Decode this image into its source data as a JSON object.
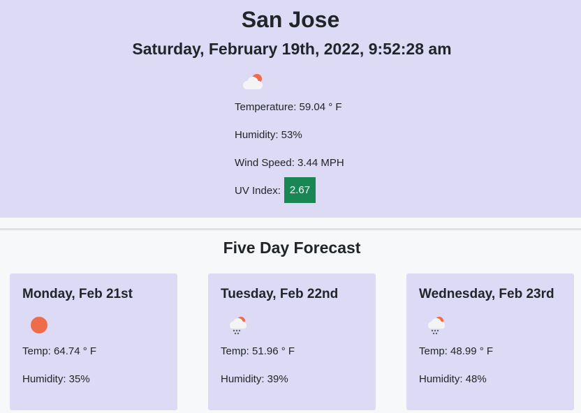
{
  "current": {
    "city": "San Jose",
    "datetime": "Saturday, February 19th, 2022, 9:52:28 am",
    "icon": "partly-cloudy-icon",
    "temperature": "Temperature: 59.04 ° F",
    "humidity": "Humidity: 53%",
    "wind": "Wind Speed: 3.44 MPH",
    "uv_label": "UV Index:",
    "uv_value": "2.67",
    "uv_color": "#198754"
  },
  "forecast": {
    "title": "Five Day Forecast",
    "days": [
      {
        "day": "Monday, Feb 21st",
        "icon": "sun-icon",
        "temp": "Temp: 64.74 ° F",
        "humidity": "Humidity: 35%"
      },
      {
        "day": "Tuesday, Feb 22nd",
        "icon": "rain-icon",
        "temp": "Temp: 51.96 ° F",
        "humidity": "Humidity: 39%"
      },
      {
        "day": "Wednesday, Feb 23rd",
        "icon": "rain-icon",
        "temp": "Temp: 48.99 ° F",
        "humidity": "Humidity: 48%"
      }
    ]
  },
  "colors": {
    "panel": "#dcdaf5",
    "background": "#f7f8f9",
    "sun": "#ef6c4a"
  }
}
